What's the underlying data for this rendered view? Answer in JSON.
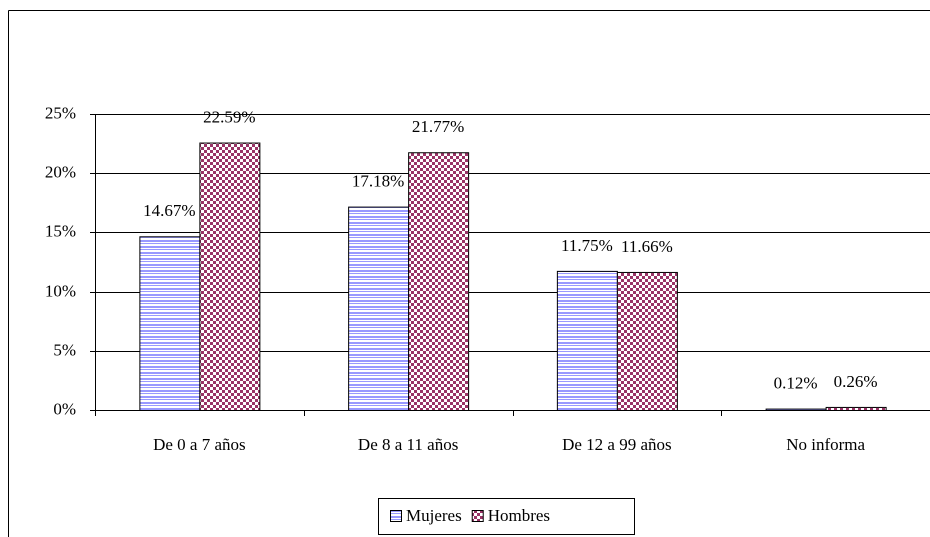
{
  "chart_data": {
    "type": "bar",
    "categories": [
      "De 0 a 7 años",
      "De 8 a 11 años",
      "De 12 a 99 años",
      "No informa"
    ],
    "series": [
      {
        "name": "Mujeres",
        "color": "#9999ff",
        "values": [
          14.67,
          17.18,
          11.75,
          0.12
        ],
        "value_labels": [
          "14.67%",
          "17.18%",
          "11.75%",
          "0.12%"
        ]
      },
      {
        "name": "Hombres",
        "color": "#993366",
        "values": [
          22.59,
          21.77,
          11.66,
          0.26
        ],
        "value_labels": [
          "22.59%",
          "21.77%",
          "11.66%",
          "0.26%"
        ]
      }
    ],
    "ylim": [
      0,
      25
    ],
    "yticks": [
      {
        "value": 0,
        "label": "0%"
      },
      {
        "value": 5,
        "label": "5%"
      },
      {
        "value": 10,
        "label": "10%"
      },
      {
        "value": 15,
        "label": "15%"
      },
      {
        "value": 20,
        "label": "20%"
      },
      {
        "value": 25,
        "label": "25%"
      }
    ],
    "grid": true,
    "legend": "bottom"
  }
}
